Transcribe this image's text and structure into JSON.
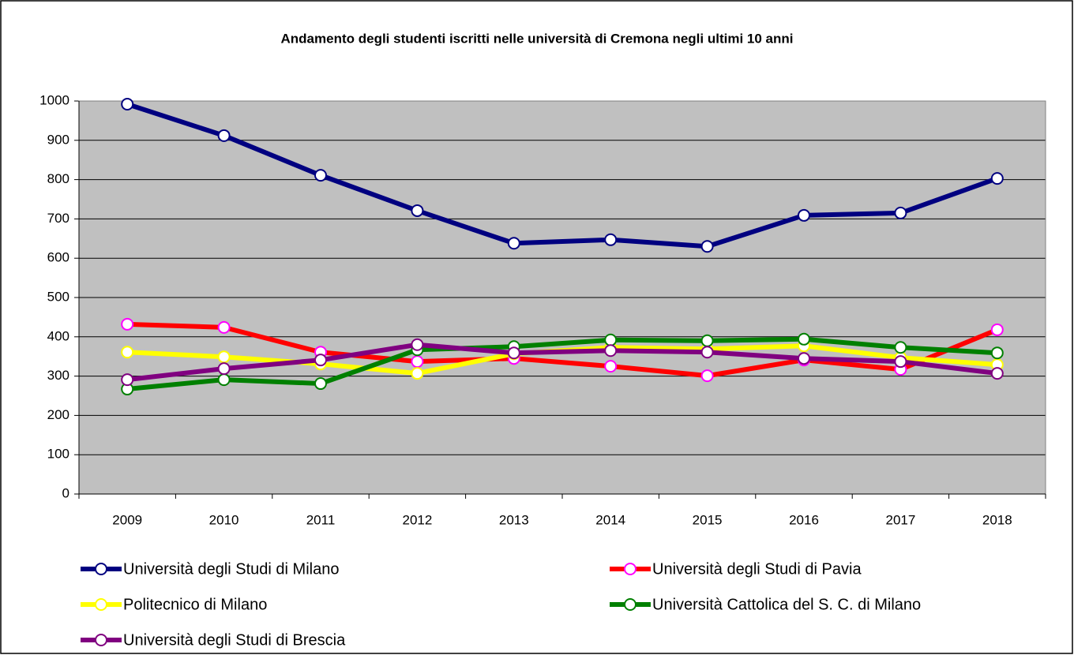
{
  "chart_data": {
    "type": "line",
    "title": "Andamento degli studenti iscritti nelle università di Cremona negli ultimi 10 anni",
    "categories": [
      "2009",
      "2010",
      "2011",
      "2012",
      "2013",
      "2014",
      "2015",
      "2016",
      "2017",
      "2018"
    ],
    "series": [
      {
        "name": "Università degli Studi di Milano",
        "color": "#000080",
        "marker_fill": "#ffffff",
        "marker_edge": "#000080",
        "values": [
          992,
          912,
          811,
          721,
          638,
          647,
          630,
          709,
          715,
          803
        ]
      },
      {
        "name": "Università degli Studi di Pavia",
        "color": "#ff0000",
        "marker_fill": "#ffffff",
        "marker_edge": "#ff00ff",
        "values": [
          432,
          424,
          361,
          337,
          345,
          325,
          301,
          341,
          317,
          418
        ]
      },
      {
        "name": "Politecnico di Milano",
        "color": "#ffff00",
        "marker_fill": "#ffffff",
        "marker_edge": "#ffff00",
        "values": [
          361,
          349,
          331,
          307,
          357,
          373,
          369,
          377,
          347,
          329
        ]
      },
      {
        "name": "Università Cattolica del S. C. di Milano",
        "color": "#008000",
        "marker_fill": "#ffffff",
        "marker_edge": "#008000",
        "values": [
          267,
          291,
          281,
          367,
          375,
          392,
          390,
          394,
          373,
          359
        ]
      },
      {
        "name": "Università degli Studi di Brescia",
        "color": "#800080",
        "marker_fill": "#ffffff",
        "marker_edge": "#800080",
        "values": [
          291,
          319,
          341,
          380,
          359,
          365,
          361,
          345,
          337,
          307
        ]
      }
    ],
    "ylim": [
      0,
      1000
    ],
    "yticks": [
      0,
      100,
      200,
      300,
      400,
      500,
      600,
      700,
      800,
      900,
      1000
    ],
    "grid": true,
    "plot_background": "#c0c0c0",
    "legend": "bottom"
  }
}
